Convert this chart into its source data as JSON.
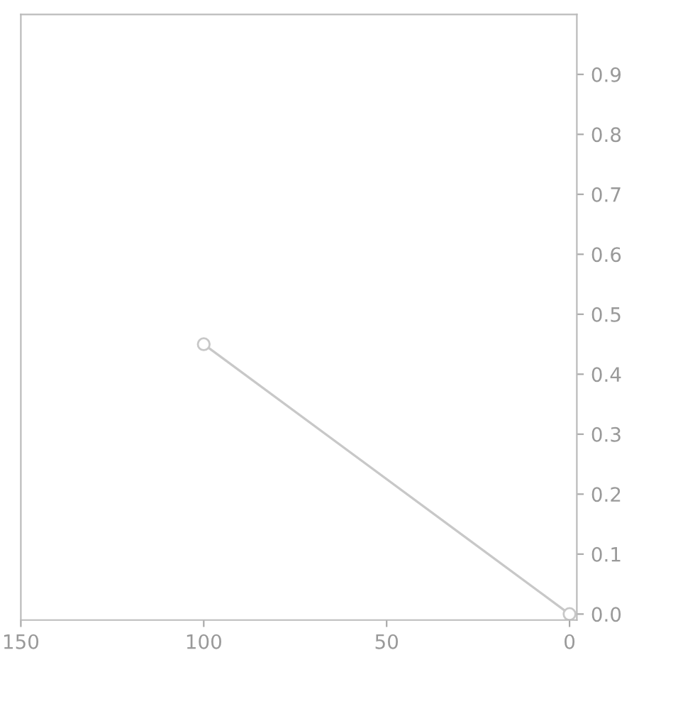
{
  "chart_data": {
    "type": "line",
    "x": [
      100,
      0
    ],
    "values": [
      0.45,
      0
    ],
    "color": "#c8c8c8",
    "marker": "circle",
    "xlim": [
      150,
      -2
    ],
    "xticks": [
      150,
      100,
      50,
      0
    ],
    "ylim": [
      -0.01,
      1.0
    ],
    "yticks": [
      {
        "value": 0,
        "label": "0.0"
      },
      0.1,
      0.2,
      0.3,
      0.4,
      0.5,
      0.6,
      0.7,
      0.8,
      0.9
    ],
    "grid": false
  }
}
